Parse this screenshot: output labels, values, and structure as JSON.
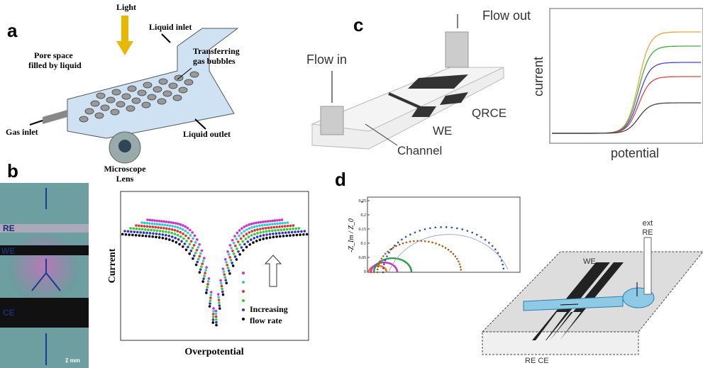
{
  "panels": {
    "a": {
      "letter": "a",
      "light": "Light",
      "liquid_inlet": "Liquid inlet",
      "pore_space": [
        "Pore space",
        "filled by liquid"
      ],
      "transferring": [
        "Transferring",
        "gas bubbles"
      ],
      "gas_inlet": "Gas inlet",
      "liquid_outlet": "Liquid outlet",
      "microscope": [
        "Microscope",
        "Lens"
      ]
    },
    "b": {
      "letter": "b",
      "electrodes": [
        "RE",
        "WE",
        "CE"
      ],
      "scale": "2 mm",
      "y_label": "Current",
      "x_label": "Overpotential",
      "annotation": [
        "Increasing",
        "flow rate"
      ]
    },
    "c": {
      "letter": "c",
      "flow_out": "Flow out",
      "flow_in": "Flow in",
      "qrce": "QRCE",
      "we": "WE",
      "channel": "Channel",
      "y_label": "current",
      "x_label": "potential"
    },
    "d": {
      "letter": "d",
      "plot_tag": "a",
      "y_label": "-Z_Im / Z_0",
      "yticks": [
        "0.25",
        "0.2",
        "0.15",
        "0.1",
        "0.05",
        "0"
      ],
      "ext_re": [
        "ext",
        "RE"
      ],
      "we": "WE",
      "re_ce": "RE CE"
    }
  }
}
